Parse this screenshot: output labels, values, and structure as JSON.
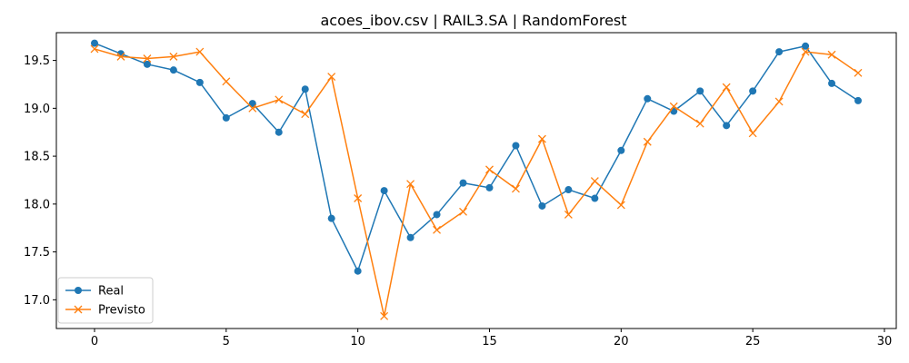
{
  "chart_data": {
    "type": "line",
    "title": "acoes_ibov.csv | RAIL3.SA | RandomForest",
    "xlabel": "",
    "ylabel": "",
    "xlim": [
      -1.45,
      30.45
    ],
    "ylim": [
      16.7,
      19.79
    ],
    "x_ticks": [
      0,
      5,
      10,
      15,
      20,
      25,
      30
    ],
    "y_ticks": [
      17.0,
      17.5,
      18.0,
      18.5,
      19.0,
      19.5
    ],
    "x_tick_labels": [
      "0",
      "5",
      "10",
      "15",
      "20",
      "25",
      "30"
    ],
    "y_tick_labels": [
      "17.0",
      "17.5",
      "18.0",
      "18.5",
      "19.0",
      "19.5"
    ],
    "grid": false,
    "legend": "lower-left",
    "x": [
      0,
      1,
      2,
      3,
      4,
      5,
      6,
      7,
      8,
      9,
      10,
      11,
      12,
      13,
      14,
      15,
      16,
      17,
      18,
      19,
      20,
      21,
      22,
      23,
      24,
      25,
      26,
      27,
      28,
      29
    ],
    "series": [
      {
        "name": "Real",
        "marker": "circle",
        "color": "#1f77b4",
        "values": [
          19.68,
          19.57,
          19.46,
          19.4,
          19.27,
          18.9,
          19.05,
          18.75,
          19.2,
          17.85,
          17.3,
          18.14,
          17.65,
          17.89,
          18.22,
          18.17,
          18.61,
          17.98,
          18.15,
          18.06,
          18.56,
          19.1,
          18.97,
          19.18,
          18.82,
          19.18,
          19.59,
          19.65,
          19.26,
          19.08
        ]
      },
      {
        "name": "Previsto",
        "marker": "x",
        "color": "#ff7f0e",
        "values": [
          19.62,
          19.54,
          19.52,
          19.54,
          19.59,
          19.28,
          19.0,
          19.09,
          18.94,
          19.33,
          18.06,
          16.83,
          18.21,
          17.73,
          17.92,
          18.36,
          18.16,
          18.68,
          17.89,
          18.24,
          17.99,
          18.65,
          19.02,
          18.84,
          19.22,
          18.74,
          19.07,
          19.59,
          19.56,
          19.37
        ]
      }
    ]
  }
}
